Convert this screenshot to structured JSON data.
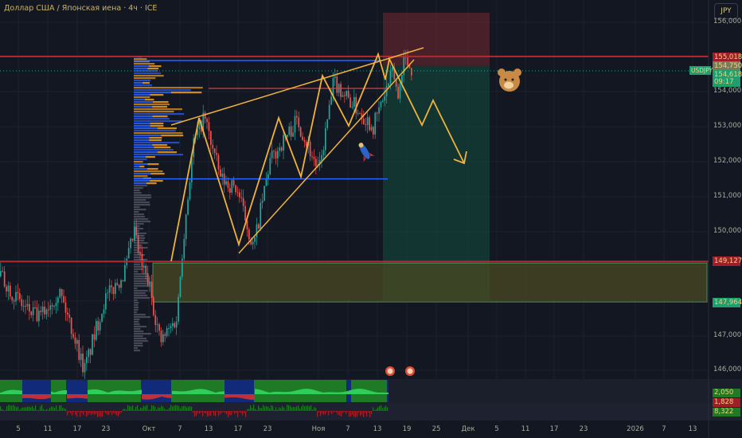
{
  "header": {
    "title": "Доллар США / Японская иена · 4ч · ICE",
    "currency_button": "JPY"
  },
  "colors": {
    "background": "#131722",
    "up": "#26a69a",
    "down": "#ef5350",
    "drawing": "#f0b23a",
    "resistance": "#b22833",
    "support_box": "#4a4a22"
  },
  "chart_data": {
    "type": "candlestick",
    "title": "",
    "symbol_tag": "USDJPY",
    "ylim": [
      145.8,
      156.3
    ],
    "price_ticks": [
      "156,000",
      "154,000",
      "153,000",
      "152,000",
      "151,000",
      "150,000",
      "147,000",
      "146,000"
    ],
    "time_ticks": [
      "5",
      "11",
      "17",
      "23",
      "Окт",
      "7",
      "13",
      "17",
      "23",
      "Ноя",
      "7",
      "13",
      "19",
      "25",
      "Дек",
      "5",
      "11",
      "17",
      "23",
      "2026",
      "7",
      "13"
    ],
    "price_tags": [
      {
        "label": "155,018",
        "kind": "resistance-line"
      },
      {
        "label": "154,750",
        "kind": "high"
      },
      {
        "label": "154,618",
        "kind": "last-price"
      },
      {
        "label": "09:17",
        "kind": "countdown"
      },
      {
        "label": "149,127",
        "kind": "support-line"
      },
      {
        "label": "147,964",
        "kind": "box-bottom"
      }
    ],
    "indicator_tags": [
      "2,050",
      "1,828",
      "8,322"
    ],
    "approx_price_path": [
      [
        "2025-09-01",
        148.7
      ],
      [
        "2025-09-06",
        147.8
      ],
      [
        "2025-09-09",
        147.5
      ],
      [
        "2025-09-13",
        148.3
      ],
      [
        "2025-09-16",
        147.0
      ],
      [
        "2025-09-18",
        146.0
      ],
      [
        "2025-09-22",
        148.0
      ],
      [
        "2025-09-26",
        148.8
      ],
      [
        "2025-09-28",
        150.0
      ],
      [
        "2025-09-29",
        149.2
      ],
      [
        "2025-10-01",
        148.4
      ],
      [
        "2025-10-03",
        146.8
      ],
      [
        "2025-10-06",
        147.5
      ],
      [
        "2025-10-07",
        149.5
      ],
      [
        "2025-10-09",
        152.5
      ],
      [
        "2025-10-11",
        153.3
      ],
      [
        "2025-10-14",
        151.5
      ],
      [
        "2025-10-17",
        151.2
      ],
      [
        "2025-10-20",
        149.5
      ],
      [
        "2025-10-23",
        152.0
      ],
      [
        "2025-10-28",
        153.2
      ],
      [
        "2025-11-01",
        151.7
      ],
      [
        "2025-11-04",
        154.3
      ],
      [
        "2025-11-07",
        153.8
      ],
      [
        "2025-11-12",
        153.0
      ],
      [
        "2025-11-16",
        154.6
      ],
      [
        "2025-11-17",
        153.8
      ],
      [
        "2025-11-18",
        155.0
      ],
      [
        "2025-11-20",
        154.6
      ]
    ],
    "levels": {
      "resistance": 155.018,
      "support": 149.127,
      "support_box_bottom": 147.964,
      "short_stop_top": 156.3,
      "short_entry": 154.75,
      "short_target": 148.0,
      "blue_support": 151.5
    }
  }
}
